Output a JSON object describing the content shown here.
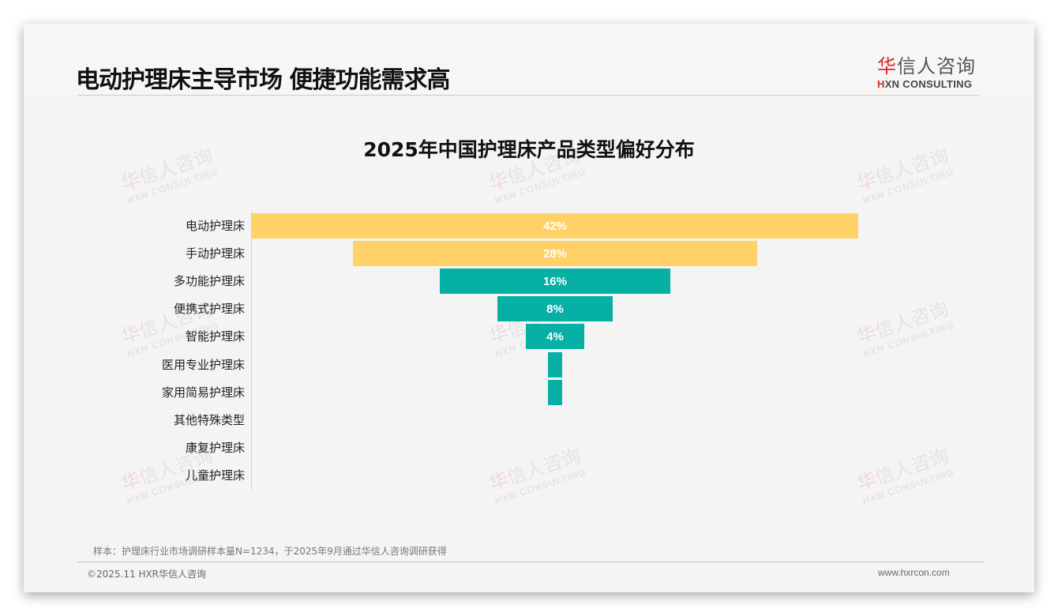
{
  "header": {
    "title": "电动护理床主导市场 便捷功能需求高",
    "logo_cn_red": "华",
    "logo_cn_rest": "信人咨询",
    "logo_en_red": "H",
    "logo_en_rest": "XN CONSULTING"
  },
  "watermark": {
    "cn_red": "华",
    "cn_rest": "信人咨询",
    "en": "HXN CONSULTING"
  },
  "colors": {
    "gold": "#ffd166",
    "teal": "#06b0a5",
    "background": "#f4f4f4"
  },
  "chart_data": {
    "type": "bar",
    "subtype": "funnel",
    "title": "2025年中国护理床产品类型偏好分布",
    "xlabel": "",
    "ylabel": "",
    "categories": [
      "电动护理床",
      "手动护理床",
      "多功能护理床",
      "便携式护理床",
      "智能护理床",
      "医用专业护理床",
      "家用简易护理床",
      "其他特殊类型",
      "康复护理床",
      "儿童护理床"
    ],
    "values": [
      42,
      28,
      16,
      8,
      4,
      1,
      1,
      0,
      0,
      0
    ],
    "labels": [
      "42%",
      "28%",
      "16%",
      "8%",
      "4%",
      "",
      "",
      "",
      "",
      ""
    ],
    "bar_colors": [
      "#ffd166",
      "#ffd166",
      "#06b0a5",
      "#06b0a5",
      "#06b0a5",
      "#06b0a5",
      "#06b0a5",
      "#06b0a5",
      "#06b0a5",
      "#06b0a5"
    ],
    "grid": false,
    "legend": "none",
    "unit": "%"
  },
  "footer": {
    "note": "样本：护理床行业市场调研样本量N=1234，于2025年9月通过华信人咨询调研获得",
    "copyright": "©2025.11 HXR华信人咨询",
    "website": "www.hxrcon.com"
  }
}
